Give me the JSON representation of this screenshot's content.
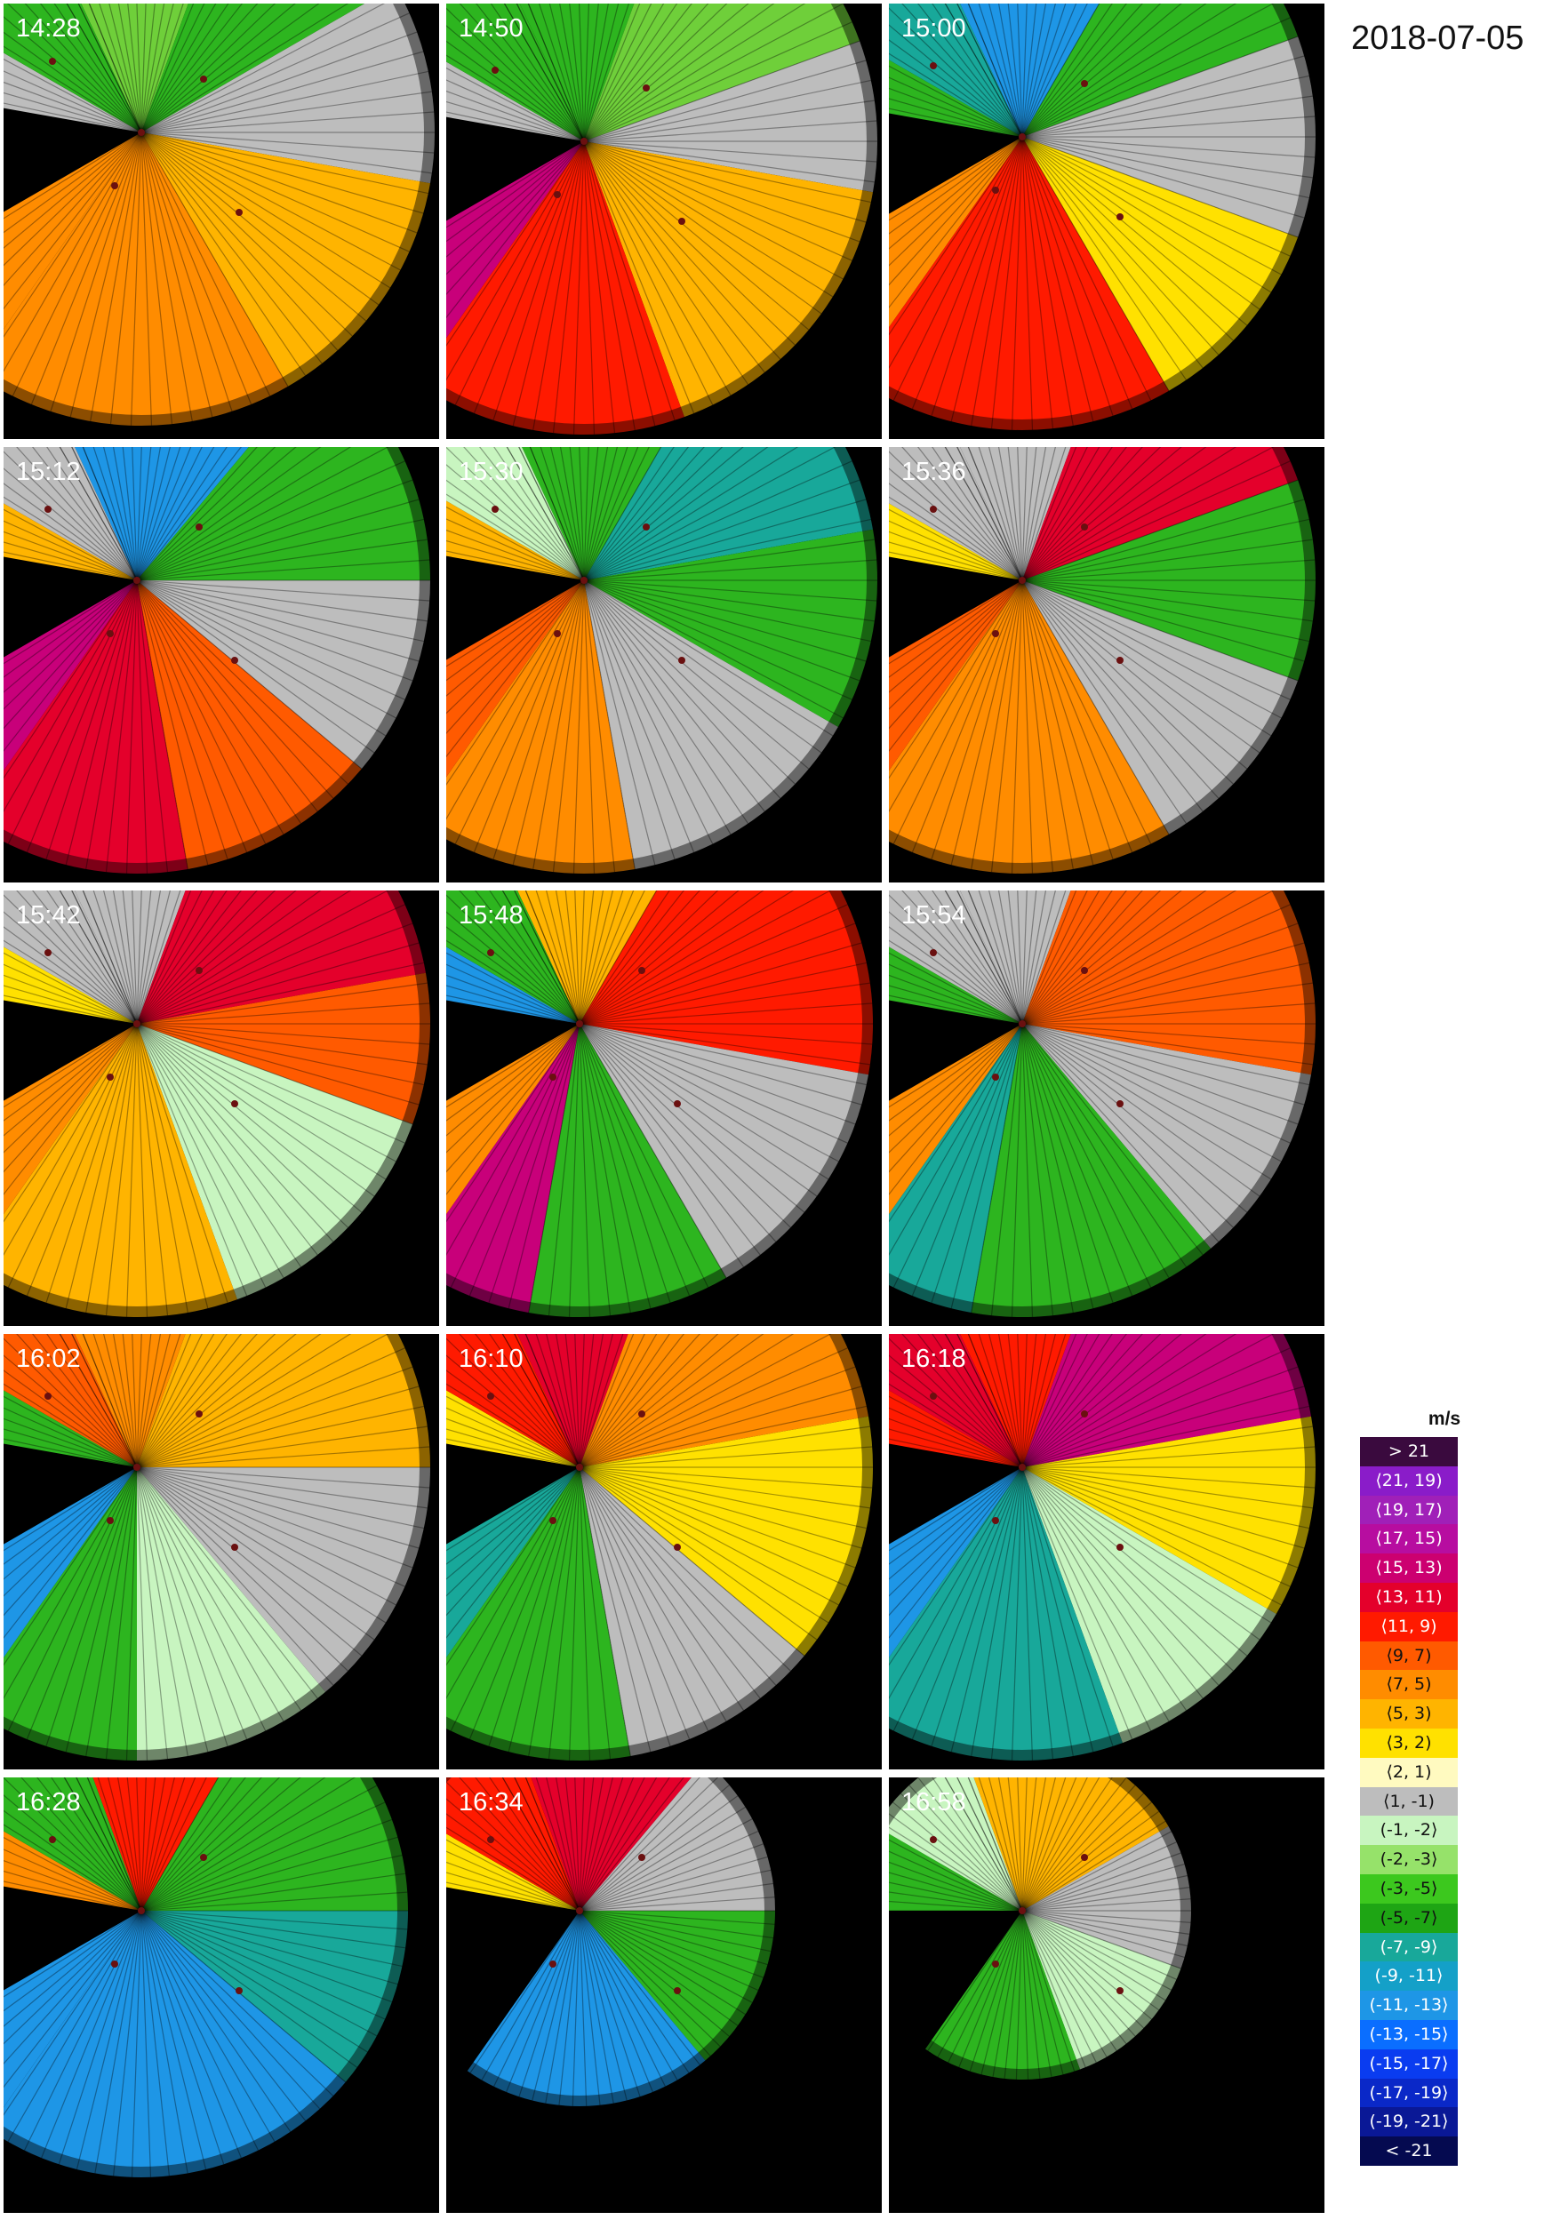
{
  "figure": {
    "date_label": "2018-07-05"
  },
  "panels": [
    {
      "time": "14:28",
      "sectors": [
        {
          "a0": -25,
          "a1": 20,
          "color": "#6fcf3a"
        },
        {
          "a0": 20,
          "a1": 60,
          "color": "#2db51f"
        },
        {
          "a0": 60,
          "a1": 100,
          "color": "#bdbdbd"
        },
        {
          "a0": 100,
          "a1": 150,
          "color": "#ffb400"
        },
        {
          "a0": 150,
          "a1": 215,
          "color": "#ff8c00"
        },
        {
          "a0": 215,
          "a1": 240,
          "color": "#ff8c00"
        },
        {
          "a0": 280,
          "a1": 300,
          "color": "#bdbdbd"
        },
        {
          "a0": 300,
          "a1": 335,
          "color": "#2db51f"
        }
      ]
    },
    {
      "time": "14:50",
      "sectors": [
        {
          "a0": -25,
          "a1": 20,
          "color": "#2db51f"
        },
        {
          "a0": 20,
          "a1": 70,
          "color": "#6fcf3a"
        },
        {
          "a0": 70,
          "a1": 100,
          "color": "#bdbdbd"
        },
        {
          "a0": 100,
          "a1": 160,
          "color": "#ffb400"
        },
        {
          "a0": 160,
          "a1": 215,
          "color": "#ff1a00"
        },
        {
          "a0": 215,
          "a1": 240,
          "color": "#c8007a"
        },
        {
          "a0": 280,
          "a1": 300,
          "color": "#bdbdbd"
        },
        {
          "a0": 300,
          "a1": 335,
          "color": "#2db51f"
        }
      ]
    },
    {
      "time": "15:00",
      "sectors": [
        {
          "a0": -25,
          "a1": 30,
          "color": "#1e96e6"
        },
        {
          "a0": 30,
          "a1": 70,
          "color": "#2db51f"
        },
        {
          "a0": 70,
          "a1": 110,
          "color": "#bdbdbd"
        },
        {
          "a0": 110,
          "a1": 150,
          "color": "#ffe100"
        },
        {
          "a0": 150,
          "a1": 215,
          "color": "#ff1a00"
        },
        {
          "a0": 215,
          "a1": 240,
          "color": "#ff8c00"
        },
        {
          "a0": 280,
          "a1": 300,
          "color": "#2db51f"
        },
        {
          "a0": 300,
          "a1": 335,
          "color": "#18a89a"
        }
      ]
    },
    {
      "time": "15:12",
      "sectors": [
        {
          "a0": -25,
          "a1": 40,
          "color": "#1e96e6"
        },
        {
          "a0": 40,
          "a1": 90,
          "color": "#2db51f"
        },
        {
          "a0": 90,
          "a1": 130,
          "color": "#bdbdbd"
        },
        {
          "a0": 130,
          "a1": 170,
          "color": "#ff5a00"
        },
        {
          "a0": 170,
          "a1": 215,
          "color": "#e4002b"
        },
        {
          "a0": 215,
          "a1": 240,
          "color": "#c8007a"
        },
        {
          "a0": 280,
          "a1": 300,
          "color": "#ffb400"
        },
        {
          "a0": 300,
          "a1": 335,
          "color": "#bdbdbd"
        }
      ]
    },
    {
      "time": "15:30",
      "sectors": [
        {
          "a0": -25,
          "a1": 30,
          "color": "#2db51f"
        },
        {
          "a0": 30,
          "a1": 80,
          "color": "#18a89a"
        },
        {
          "a0": 80,
          "a1": 120,
          "color": "#2db51f"
        },
        {
          "a0": 120,
          "a1": 170,
          "color": "#bdbdbd"
        },
        {
          "a0": 170,
          "a1": 215,
          "color": "#ff8c00"
        },
        {
          "a0": 215,
          "a1": 240,
          "color": "#ff5a00"
        },
        {
          "a0": 280,
          "a1": 300,
          "color": "#ffb400"
        },
        {
          "a0": 300,
          "a1": 335,
          "color": "#c8f5c0"
        }
      ]
    },
    {
      "time": "15:36",
      "sectors": [
        {
          "a0": -25,
          "a1": 20,
          "color": "#bdbdbd"
        },
        {
          "a0": 20,
          "a1": 70,
          "color": "#e4002b"
        },
        {
          "a0": 70,
          "a1": 110,
          "color": "#2db51f"
        },
        {
          "a0": 110,
          "a1": 150,
          "color": "#bdbdbd"
        },
        {
          "a0": 150,
          "a1": 215,
          "color": "#ff8c00"
        },
        {
          "a0": 215,
          "a1": 240,
          "color": "#ff5a00"
        },
        {
          "a0": 280,
          "a1": 300,
          "color": "#ffe100"
        },
        {
          "a0": 300,
          "a1": 335,
          "color": "#bdbdbd"
        }
      ]
    },
    {
      "time": "15:42",
      "sectors": [
        {
          "a0": -25,
          "a1": 20,
          "color": "#bdbdbd"
        },
        {
          "a0": 20,
          "a1": 80,
          "color": "#e4002b"
        },
        {
          "a0": 80,
          "a1": 110,
          "color": "#ff5a00"
        },
        {
          "a0": 110,
          "a1": 160,
          "color": "#c8f5c0"
        },
        {
          "a0": 160,
          "a1": 215,
          "color": "#ffb400"
        },
        {
          "a0": 215,
          "a1": 240,
          "color": "#ff8c00"
        },
        {
          "a0": 280,
          "a1": 300,
          "color": "#ffe100"
        },
        {
          "a0": 300,
          "a1": 335,
          "color": "#bdbdbd"
        }
      ]
    },
    {
      "time": "15:48",
      "sectors": [
        {
          "a0": -25,
          "a1": 30,
          "color": "#ffb400"
        },
        {
          "a0": 30,
          "a1": 100,
          "color": "#ff1a00"
        },
        {
          "a0": 100,
          "a1": 150,
          "color": "#bdbdbd"
        },
        {
          "a0": 150,
          "a1": 190,
          "color": "#2db51f"
        },
        {
          "a0": 190,
          "a1": 215,
          "color": "#c8007a"
        },
        {
          "a0": 215,
          "a1": 240,
          "color": "#ff8c00"
        },
        {
          "a0": 280,
          "a1": 300,
          "color": "#1e96e6"
        },
        {
          "a0": 300,
          "a1": 335,
          "color": "#2db51f"
        }
      ]
    },
    {
      "time": "15:54",
      "sectors": [
        {
          "a0": -25,
          "a1": 20,
          "color": "#bdbdbd"
        },
        {
          "a0": 20,
          "a1": 100,
          "color": "#ff5a00"
        },
        {
          "a0": 100,
          "a1": 140,
          "color": "#bdbdbd"
        },
        {
          "a0": 140,
          "a1": 190,
          "color": "#2db51f"
        },
        {
          "a0": 190,
          "a1": 215,
          "color": "#18a89a"
        },
        {
          "a0": 215,
          "a1": 240,
          "color": "#ff8c00"
        },
        {
          "a0": 280,
          "a1": 300,
          "color": "#2db51f"
        },
        {
          "a0": 300,
          "a1": 335,
          "color": "#bdbdbd"
        }
      ]
    },
    {
      "time": "16:02",
      "sectors": [
        {
          "a0": -25,
          "a1": 20,
          "color": "#ff8c00"
        },
        {
          "a0": 20,
          "a1": 90,
          "color": "#ffb400"
        },
        {
          "a0": 90,
          "a1": 140,
          "color": "#bdbdbd"
        },
        {
          "a0": 140,
          "a1": 180,
          "color": "#c8f5c0"
        },
        {
          "a0": 180,
          "a1": 215,
          "color": "#2db51f"
        },
        {
          "a0": 215,
          "a1": 240,
          "color": "#1e96e6"
        },
        {
          "a0": 280,
          "a1": 300,
          "color": "#2db51f"
        },
        {
          "a0": 300,
          "a1": 335,
          "color": "#ff5a00"
        }
      ]
    },
    {
      "time": "16:10",
      "sectors": [
        {
          "a0": -25,
          "a1": 20,
          "color": "#e4002b"
        },
        {
          "a0": 20,
          "a1": 80,
          "color": "#ff8c00"
        },
        {
          "a0": 80,
          "a1": 130,
          "color": "#ffe100"
        },
        {
          "a0": 130,
          "a1": 170,
          "color": "#bdbdbd"
        },
        {
          "a0": 170,
          "a1": 215,
          "color": "#2db51f"
        },
        {
          "a0": 215,
          "a1": 240,
          "color": "#18a89a"
        },
        {
          "a0": 280,
          "a1": 300,
          "color": "#ffe100"
        },
        {
          "a0": 300,
          "a1": 335,
          "color": "#ff1a00"
        }
      ]
    },
    {
      "time": "16:18",
      "sectors": [
        {
          "a0": -25,
          "a1": 20,
          "color": "#ff1a00"
        },
        {
          "a0": 20,
          "a1": 80,
          "color": "#c8007a"
        },
        {
          "a0": 80,
          "a1": 120,
          "color": "#ffe100"
        },
        {
          "a0": 120,
          "a1": 160,
          "color": "#c8f5c0"
        },
        {
          "a0": 160,
          "a1": 215,
          "color": "#18a89a"
        },
        {
          "a0": 215,
          "a1": 240,
          "color": "#1e96e6"
        },
        {
          "a0": 280,
          "a1": 300,
          "color": "#ff1a00"
        },
        {
          "a0": 300,
          "a1": 335,
          "color": "#e4002b"
        }
      ]
    },
    {
      "time": "16:28",
      "sectors": [
        {
          "a0": -20,
          "a1": 30,
          "color": "#ff1a00"
        },
        {
          "a0": 30,
          "a1": 90,
          "color": "#2db51f"
        },
        {
          "a0": 90,
          "a1": 130,
          "color": "#18a89a"
        },
        {
          "a0": 130,
          "a1": 215,
          "color": "#1e96e6"
        },
        {
          "a0": 215,
          "a1": 240,
          "color": "#1e96e6"
        },
        {
          "a0": 280,
          "a1": 300,
          "color": "#ff8c00"
        },
        {
          "a0": 300,
          "a1": 340,
          "color": "#2db51f"
        }
      ]
    },
    {
      "time": "16:34",
      "sectors": [
        {
          "a0": -20,
          "a1": 40,
          "color": "#e4002b"
        },
        {
          "a0": 40,
          "a1": 90,
          "color": "#bdbdbd"
        },
        {
          "a0": 90,
          "a1": 140,
          "color": "#2db51f"
        },
        {
          "a0": 140,
          "a1": 215,
          "color": "#1e96e6"
        },
        {
          "a0": 280,
          "a1": 300,
          "color": "#ffe100"
        },
        {
          "a0": 300,
          "a1": 340,
          "color": "#ff1a00"
        }
      ]
    },
    {
      "time": "16:58",
      "sectors": [
        {
          "a0": -20,
          "a1": 60,
          "color": "#ffb400"
        },
        {
          "a0": 60,
          "a1": 110,
          "color": "#bdbdbd"
        },
        {
          "a0": 110,
          "a1": 160,
          "color": "#c8f5c0"
        },
        {
          "a0": 160,
          "a1": 215,
          "color": "#2db51f"
        },
        {
          "a0": 270,
          "a1": 300,
          "color": "#2db51f"
        },
        {
          "a0": 300,
          "a1": 340,
          "color": "#c8f5c0"
        }
      ]
    }
  ],
  "legend": {
    "title": "m/s",
    "items": [
      {
        "label": "> 21",
        "color": "#3a0a3e"
      },
      {
        "label": "⟨21, 19)",
        "color": "#8a1cc9"
      },
      {
        "label": "⟨19, 17)",
        "color": "#a020b8"
      },
      {
        "label": "⟨17, 15)",
        "color": "#b70da0"
      },
      {
        "label": "⟨15, 13)",
        "color": "#cc0070"
      },
      {
        "label": "⟨13, 11)",
        "color": "#e4002b"
      },
      {
        "label": "⟨11, 9)",
        "color": "#ff1a00"
      },
      {
        "label": "⟨9, 7)",
        "color": "#ff5a00"
      },
      {
        "label": "⟨7, 5)",
        "color": "#ff8c00"
      },
      {
        "label": "⟨5, 3)",
        "color": "#ffb400"
      },
      {
        "label": "⟨3, 2)",
        "color": "#ffe100"
      },
      {
        "label": "⟨2, 1)",
        "color": "#fffac0"
      },
      {
        "label": "⟨1, -1)",
        "color": "#bdbdbd"
      },
      {
        "label": "(-1, -2⟩",
        "color": "#c8f5c0"
      },
      {
        "label": "(-2, -3⟩",
        "color": "#96e26a"
      },
      {
        "label": "(-3, -5⟩",
        "color": "#3cc81e"
      },
      {
        "label": "(-5, -7⟩",
        "color": "#1ea514"
      },
      {
        "label": "(-7, -9⟩",
        "color": "#18a89a"
      },
      {
        "label": "(-9, -11⟩",
        "color": "#14a0c8"
      },
      {
        "label": "(-11, -13⟩",
        "color": "#1e96e6"
      },
      {
        "label": "(-13, -15⟩",
        "color": "#0a6eff"
      },
      {
        "label": "(-15, -17⟩",
        "color": "#0a3cf0"
      },
      {
        "label": "(-17, -19⟩",
        "color": "#0a28c8"
      },
      {
        "label": "(-19, -21⟩",
        "color": "#0a1896"
      },
      {
        "label": "< -21",
        "color": "#050a50"
      }
    ]
  }
}
